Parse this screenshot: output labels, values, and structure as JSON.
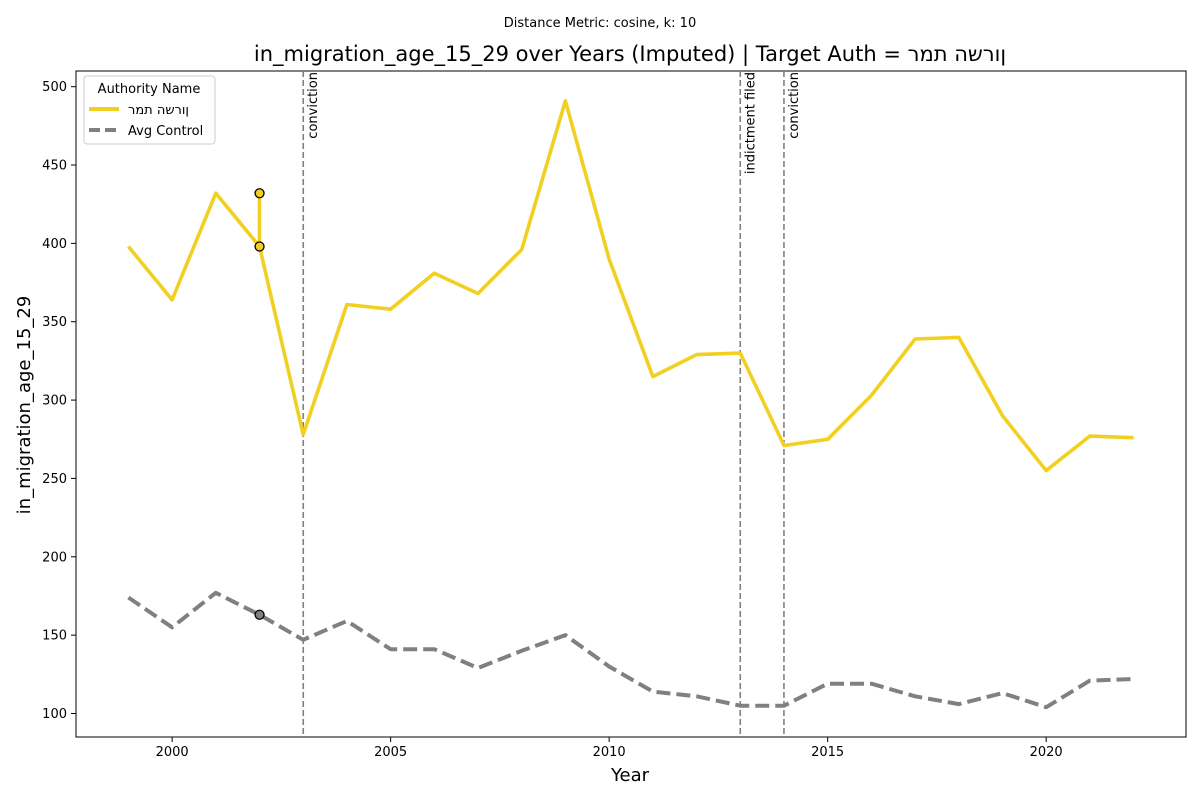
{
  "chart_data": {
    "type": "line",
    "subtitle": "Distance Metric: cosine, k: 10",
    "title": "in_migration_age_15_29 over Years (Imputed) | Target Auth = ןורשה תמר",
    "xlabel": "Year",
    "ylabel": "in_migration_age_15_29",
    "xlim": [
      1997.8,
      2023.2
    ],
    "ylim": [
      85,
      510
    ],
    "x_ticks": [
      2000,
      2005,
      2010,
      2015,
      2020
    ],
    "y_ticks": [
      100,
      150,
      200,
      250,
      300,
      350,
      400,
      450,
      500
    ],
    "grid": false,
    "legend": {
      "title": "Authority Name",
      "placement": "top-left"
    },
    "series": [
      {
        "name": "ןורשה תמר",
        "color": "#f2d022",
        "style": "solid",
        "x": [
          1999,
          2000,
          2001,
          2002,
          2002,
          2002,
          2003,
          2004,
          2005,
          2006,
          2007,
          2008,
          2009,
          2010,
          2011,
          2012,
          2013,
          2014,
          2015,
          2016,
          2017,
          2018,
          2019,
          2020,
          2021,
          2022
        ],
        "y": [
          398,
          364,
          432,
          398,
          432,
          398,
          278,
          361,
          358,
          381,
          368,
          396,
          491,
          390,
          315,
          329,
          330,
          271,
          275,
          303,
          339,
          340,
          290,
          255,
          277,
          276
        ]
      },
      {
        "name": "Avg Control",
        "color": "#808080",
        "style": "dashed",
        "x": [
          1999,
          2000,
          2001,
          2002,
          2003,
          2004,
          2005,
          2006,
          2007,
          2008,
          2009,
          2010,
          2011,
          2012,
          2013,
          2014,
          2015,
          2016,
          2017,
          2018,
          2019,
          2020,
          2021,
          2022
        ],
        "y": [
          174,
          155,
          177,
          163,
          147,
          159,
          141,
          141,
          129,
          140,
          150,
          130,
          114,
          111,
          105,
          105,
          119,
          119,
          111,
          106,
          113,
          104,
          121,
          122
        ]
      }
    ],
    "markers": [
      {
        "series": "ןורשה תמר",
        "x": 2002,
        "y": 432,
        "fill": "#f2d022"
      },
      {
        "series": "ןורשה תמר",
        "x": 2002,
        "y": 398,
        "fill": "#f2d022"
      },
      {
        "series": "Avg Control",
        "x": 2002,
        "y": 163,
        "fill": "#808080"
      }
    ],
    "events": [
      {
        "x": 2003,
        "label": "conviction"
      },
      {
        "x": 2013,
        "label": "indictment filed"
      },
      {
        "x": 2014,
        "label": "conviction"
      }
    ]
  }
}
